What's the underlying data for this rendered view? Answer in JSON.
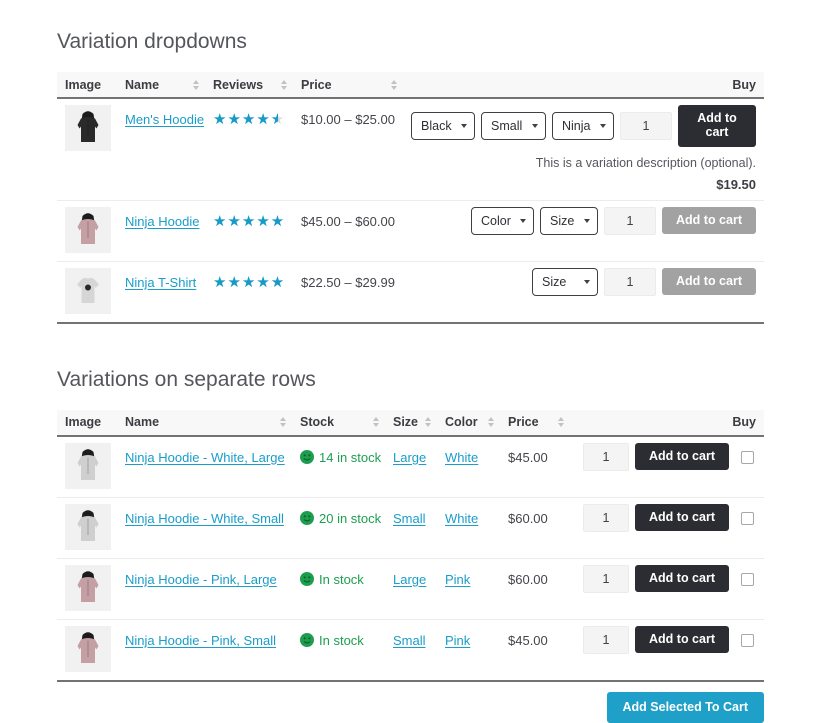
{
  "colors": {
    "accent_link_blue": "#1a9dc9",
    "star_blue": "#149bc7",
    "stock_green": "#1d9e4f",
    "button_dark": "#2b2d33",
    "button_disabled_gray": "#a2a2a2",
    "button_teal": "#1ea0c8"
  },
  "table1": {
    "title": "Variation dropdowns",
    "headers": [
      "Image",
      "Name",
      "Reviews",
      "Price",
      "Buy"
    ],
    "rows": [
      {
        "name": "Men's Hoodie",
        "rating": 4.5,
        "price": "$10.00 – $25.00",
        "options": [
          "Black",
          "Small",
          "Ninja"
        ],
        "qty": "1",
        "add_to_cart": "Add to cart",
        "description": "This is a variation description (optional).",
        "variation_price": "$19.50"
      },
      {
        "name": "Ninja Hoodie",
        "rating": 5,
        "price": "$45.00 – $60.00",
        "options": [
          "Color",
          "Size"
        ],
        "qty": "1",
        "add_to_cart": "Add to cart"
      },
      {
        "name": "Ninja T-Shirt",
        "rating": 5,
        "price": "$22.50 – $29.99",
        "options": [
          "Size"
        ],
        "qty": "1",
        "add_to_cart": "Add to cart"
      }
    ]
  },
  "table2": {
    "title": "Variations on separate rows",
    "headers": [
      "Image",
      "Name",
      "Stock",
      "Size",
      "Color",
      "Price",
      "Buy"
    ],
    "rows": [
      {
        "name": "Ninja Hoodie - White, Large",
        "stock": "14 in stock",
        "size": "Large",
        "color": "White",
        "price": "$45.00",
        "qty": "1",
        "add_to_cart": "Add to cart"
      },
      {
        "name": "Ninja Hoodie - White, Small",
        "stock": "20 in stock",
        "size": "Small",
        "color": "White",
        "price": "$60.00",
        "qty": "1",
        "add_to_cart": "Add to cart"
      },
      {
        "name": "Ninja Hoodie - Pink, Large",
        "stock": "In stock",
        "size": "Large",
        "color": "Pink",
        "price": "$60.00",
        "qty": "1",
        "add_to_cart": "Add to cart"
      },
      {
        "name": "Ninja Hoodie - Pink, Small",
        "stock": "In stock",
        "size": "Small",
        "color": "Pink",
        "price": "$45.00",
        "qty": "1",
        "add_to_cart": "Add to cart"
      }
    ],
    "footer_button": "Add Selected To Cart"
  }
}
